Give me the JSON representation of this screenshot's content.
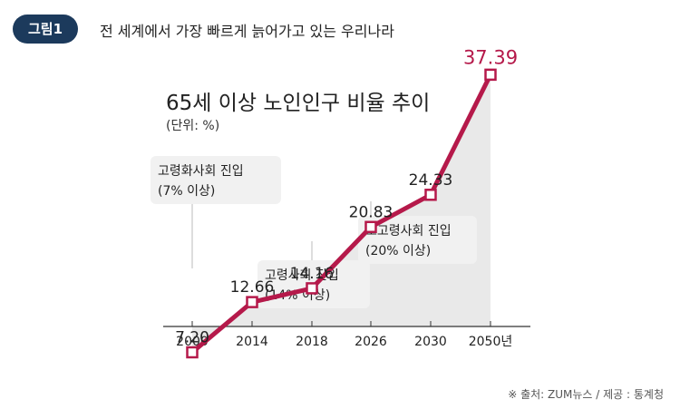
{
  "header": {
    "badge": "그림1",
    "headline": "전 세계에서 가장 빠르게 늙어가고 있는 우리나라"
  },
  "source": "※ 출처: ZUM뉴스 / 제공 : 통계청",
  "colors": {
    "line": "#b5194a",
    "accent_label": "#b5194a",
    "area": "#e9e9e9",
    "badge": "#1c3a5c"
  },
  "chart_data": {
    "type": "line",
    "title": "65세 이상 노인인구 비율 추이",
    "subtitle": "(단위: %)",
    "categories": [
      "2000",
      "2014",
      "2018",
      "2026",
      "2030",
      "2050년"
    ],
    "values": [
      7.2,
      12.66,
      14.16,
      20.83,
      24.33,
      37.39
    ],
    "value_labels": [
      "7.20",
      "12.66",
      "14.16",
      "20.83",
      "24.33",
      "37.39"
    ],
    "annotations": [
      {
        "line1": "고령화사회 진입",
        "line2": "(7% 이상)"
      },
      {
        "line1": "고령사회 진입",
        "line2": "(14% 이상)"
      },
      {
        "line1": "초고령사회 진입",
        "line2": "(20% 이상)"
      }
    ],
    "grid": false
  }
}
